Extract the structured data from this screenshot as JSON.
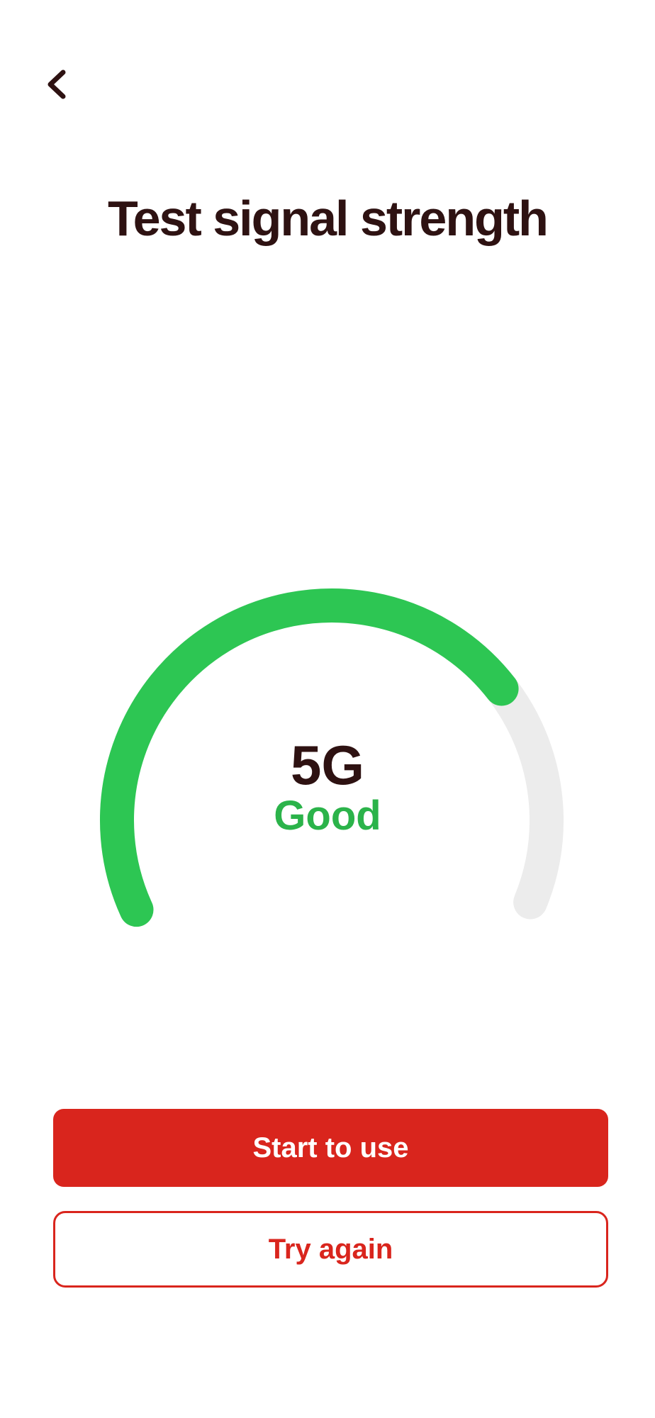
{
  "title": "Test signal strength",
  "header": {
    "back_icon": "chevron-left"
  },
  "gauge": {
    "network": "5G",
    "status": "Good",
    "percent": 73.5,
    "fill_color": "#2dc653",
    "track_color": "#ececec",
    "status_color": "#2bb34a"
  },
  "buttons": {
    "primary_label": "Start to use",
    "secondary_label": "Try again"
  },
  "colors": {
    "accent_red": "#d9251d",
    "text_dark": "#2e1212"
  }
}
